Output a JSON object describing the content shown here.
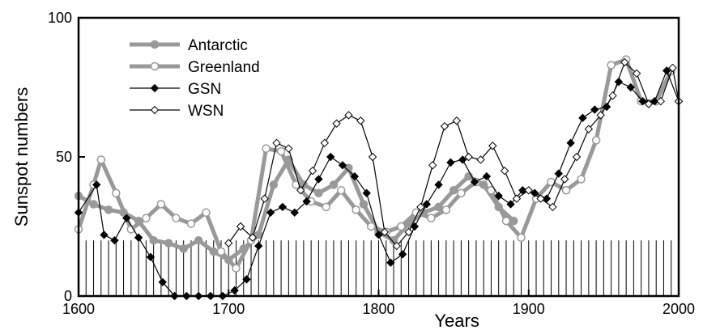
{
  "chart_data": {
    "type": "line",
    "xlabel": "Years",
    "ylabel": "Sunspot numbers",
    "xlim": [
      1600,
      2000
    ],
    "ylim": [
      0,
      100
    ],
    "xticks": [
      1600,
      1700,
      1800,
      1900,
      2000
    ],
    "yticks": [
      0,
      50,
      100
    ],
    "xtick_labels": [
      "1600",
      "1700",
      "1800",
      "1900",
      "2000"
    ],
    "ytick_labels": [
      "0",
      "50",
      "100"
    ],
    "legend": {
      "placement": "top-left"
    },
    "grid": false,
    "background_bars": {
      "interval_years": 5,
      "height": 20,
      "color": "#000000"
    },
    "series": [
      {
        "name": "Antarctic",
        "style": "thick-gray-filled-circle",
        "color": "#999999",
        "x": [
          1600,
          1610,
          1620,
          1630,
          1640,
          1650,
          1660,
          1670,
          1680,
          1690,
          1700,
          1710,
          1720,
          1730,
          1740,
          1750,
          1760,
          1770,
          1780,
          1790,
          1800,
          1810,
          1820,
          1830,
          1840,
          1850,
          1860,
          1870,
          1880,
          1890
        ],
        "y": [
          36,
          33,
          31,
          30,
          27,
          20,
          19,
          17,
          20,
          16,
          13,
          17,
          22,
          40,
          49,
          40,
          37,
          40,
          46,
          33,
          23,
          20,
          26,
          30,
          32,
          38,
          43,
          40,
          32,
          27
        ]
      },
      {
        "name": "Greenland",
        "style": "thick-gray-open-circle",
        "color": "#999999",
        "x": [
          1600,
          1610,
          1615,
          1625,
          1635,
          1645,
          1655,
          1665,
          1675,
          1685,
          1695,
          1705,
          1715,
          1725,
          1735,
          1745,
          1755,
          1765,
          1775,
          1785,
          1795,
          1805,
          1815,
          1825,
          1835,
          1845,
          1855,
          1865,
          1875,
          1885,
          1895,
          1905,
          1915,
          1925,
          1935,
          1945,
          1955,
          1965,
          1975,
          1985,
          1995
        ],
        "y": [
          24,
          40,
          49,
          37,
          24,
          28,
          33,
          28,
          26,
          30,
          16,
          10,
          20,
          53,
          52,
          40,
          34,
          32,
          38,
          31,
          25,
          23,
          25,
          30,
          28,
          31,
          37,
          41,
          38,
          27,
          21,
          35,
          41,
          38,
          42,
          56,
          83,
          85,
          70,
          70,
          81
        ]
      },
      {
        "name": "GSN",
        "style": "thin-black-filled-diamond",
        "color": "#000000",
        "x": [
          1600,
          1612,
          1617,
          1624,
          1632,
          1640,
          1648,
          1656,
          1664,
          1672,
          1680,
          1688,
          1696,
          1704,
          1712,
          1720,
          1728,
          1736,
          1744,
          1752,
          1760,
          1768,
          1776,
          1784,
          1792,
          1800,
          1808,
          1816,
          1824,
          1832,
          1840,
          1848,
          1856,
          1864,
          1872,
          1880,
          1888,
          1896,
          1904,
          1912,
          1920,
          1928,
          1936,
          1944,
          1952,
          1960,
          1968,
          1976,
          1984,
          1992,
          2000
        ],
        "y": [
          30,
          40,
          22,
          20,
          28,
          21,
          14,
          5,
          0,
          0,
          0,
          0,
          0,
          2,
          6,
          18,
          30,
          32,
          30,
          34,
          42,
          50,
          47,
          43,
          37,
          22,
          12,
          15,
          25,
          33,
          40,
          48,
          49,
          41,
          43,
          36,
          33,
          38,
          37,
          35,
          44,
          55,
          64,
          67,
          68,
          77,
          75,
          70,
          70,
          81,
          70
        ]
      },
      {
        "name": "WSN",
        "style": "thin-black-open-diamond",
        "color": "#000000",
        "x": [
          1700,
          1708,
          1716,
          1724,
          1732,
          1740,
          1748,
          1756,
          1764,
          1772,
          1780,
          1788,
          1796,
          1804,
          1812,
          1820,
          1828,
          1836,
          1844,
          1852,
          1860,
          1868,
          1876,
          1884,
          1892,
          1900,
          1908,
          1916,
          1924,
          1932,
          1940,
          1948,
          1956,
          1964,
          1972,
          1980,
          1988,
          1996,
          2000
        ],
        "y": [
          19,
          25,
          21,
          35,
          55,
          53,
          38,
          45,
          55,
          62,
          65,
          63,
          50,
          23,
          18,
          23,
          32,
          47,
          61,
          63,
          50,
          49,
          54,
          45,
          35,
          38,
          35,
          32,
          42,
          50,
          60,
          65,
          72,
          84,
          80,
          69,
          70,
          82,
          70
        ]
      }
    ]
  }
}
